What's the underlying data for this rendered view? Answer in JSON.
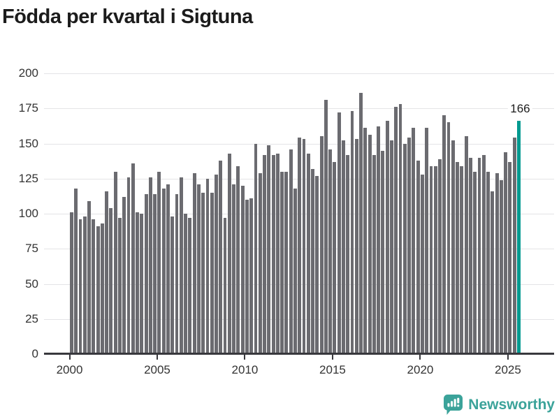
{
  "title": "Födda per kvartal i Sigtuna",
  "chart_data": {
    "type": "bar",
    "title": "Födda per kvartal i Sigtuna",
    "xlabel": "",
    "ylabel": "",
    "x_start_label": "2000 Q1",
    "x_end_label": "2025 Q3",
    "categories": [
      "2000Q1",
      "2000Q2",
      "2000Q3",
      "2000Q4",
      "2001Q1",
      "2001Q2",
      "2001Q3",
      "2001Q4",
      "2002Q1",
      "2002Q2",
      "2002Q3",
      "2002Q4",
      "2003Q1",
      "2003Q2",
      "2003Q3",
      "2003Q4",
      "2004Q1",
      "2004Q2",
      "2004Q3",
      "2004Q4",
      "2005Q1",
      "2005Q2",
      "2005Q3",
      "2005Q4",
      "2006Q1",
      "2006Q2",
      "2006Q3",
      "2006Q4",
      "2007Q1",
      "2007Q2",
      "2007Q3",
      "2007Q4",
      "2008Q1",
      "2008Q2",
      "2008Q3",
      "2008Q4",
      "2009Q1",
      "2009Q2",
      "2009Q3",
      "2009Q4",
      "2010Q1",
      "2010Q2",
      "2010Q3",
      "2010Q4",
      "2011Q1",
      "2011Q2",
      "2011Q3",
      "2011Q4",
      "2012Q1",
      "2012Q2",
      "2012Q3",
      "2012Q4",
      "2013Q1",
      "2013Q2",
      "2013Q3",
      "2013Q4",
      "2014Q1",
      "2014Q2",
      "2014Q3",
      "2014Q4",
      "2015Q1",
      "2015Q2",
      "2015Q3",
      "2015Q4",
      "2016Q1",
      "2016Q2",
      "2016Q3",
      "2016Q4",
      "2017Q1",
      "2017Q2",
      "2017Q3",
      "2017Q4",
      "2018Q1",
      "2018Q2",
      "2018Q3",
      "2018Q4",
      "2019Q1",
      "2019Q2",
      "2019Q3",
      "2019Q4",
      "2020Q1",
      "2020Q2",
      "2020Q3",
      "2020Q4",
      "2021Q1",
      "2021Q2",
      "2021Q3",
      "2021Q4",
      "2022Q1",
      "2022Q2",
      "2022Q3",
      "2022Q4",
      "2023Q1",
      "2023Q2",
      "2023Q3",
      "2023Q4",
      "2024Q1",
      "2024Q2",
      "2024Q3",
      "2024Q4",
      "2025Q1",
      "2025Q2",
      "2025Q3"
    ],
    "values": [
      101,
      118,
      96,
      98,
      109,
      96,
      91,
      93,
      116,
      104,
      130,
      97,
      112,
      126,
      136,
      101,
      100,
      114,
      126,
      114,
      130,
      118,
      121,
      98,
      114,
      126,
      100,
      97,
      129,
      121,
      115,
      125,
      115,
      128,
      138,
      97,
      143,
      121,
      134,
      120,
      110,
      111,
      150,
      129,
      142,
      149,
      142,
      143,
      130,
      130,
      146,
      118,
      154,
      153,
      143,
      132,
      127,
      155,
      181,
      146,
      137,
      172,
      152,
      142,
      173,
      153,
      186,
      161,
      156,
      142,
      162,
      145,
      166,
      152,
      176,
      178,
      150,
      154,
      161,
      138,
      128,
      161,
      134,
      134,
      139,
      170,
      165,
      152,
      137,
      134,
      155,
      140,
      130,
      140,
      142,
      130,
      116,
      129,
      124,
      144,
      137,
      154,
      166
    ],
    "ylim": [
      0,
      200
    ],
    "y_ticks": [
      0,
      25,
      50,
      75,
      100,
      125,
      150,
      175,
      200
    ],
    "x_tick_labels": [
      "2000",
      "2005",
      "2010",
      "2015",
      "2020",
      "2025"
    ],
    "x_tick_years": [
      2000,
      2005,
      2010,
      2015,
      2020,
      2025
    ],
    "grid": true,
    "legend": "none",
    "bar_color": "#6b6b70",
    "highlight_color": "#009a90",
    "highlight_index": 102,
    "annotation": {
      "text": "166",
      "value": 166,
      "target": "2025Q3"
    }
  },
  "branding": {
    "name": "Newsworthy",
    "logo_icon": "bar-chart-speech-bubble-icon",
    "color": "#3ba39a"
  }
}
